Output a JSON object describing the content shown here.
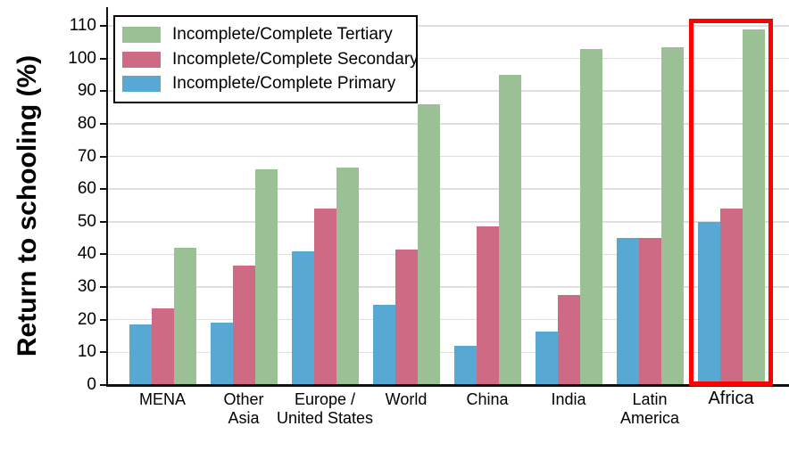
{
  "chart_data": {
    "type": "bar",
    "title": "",
    "xlabel": "",
    "ylabel": "Return to schooling (%)",
    "ylim": [
      0,
      115
    ],
    "yticks": [
      0,
      10,
      20,
      30,
      40,
      50,
      60,
      70,
      80,
      90,
      100,
      110
    ],
    "grid": true,
    "legend_position": "top-left",
    "legend_order": "reversed",
    "categories": [
      [
        "MENA"
      ],
      [
        "Other",
        "Asia"
      ],
      [
        "Europe /",
        "United States"
      ],
      [
        "World"
      ],
      [
        "China"
      ],
      [
        "India"
      ],
      [
        "Latin",
        "America"
      ],
      [
        "Africa"
      ]
    ],
    "series": [
      {
        "name": "Incomplete/Complete Primary",
        "color": "#57a9d4",
        "values": [
          18.5,
          19,
          41,
          24.5,
          12,
          16.5,
          45,
          50
        ]
      },
      {
        "name": "Incomplete/Complete Secondary",
        "color": "#cf6a84",
        "values": [
          23.5,
          36.5,
          54,
          41.5,
          48.5,
          27.5,
          45,
          54
        ]
      },
      {
        "name": "Incomplete/Complete Tertiary",
        "color": "#9cc095",
        "values": [
          42,
          66,
          66.5,
          86,
          95,
          103,
          103.5,
          109
        ]
      }
    ],
    "highlight": {
      "category": "Africa",
      "color": "#ff0000"
    },
    "colors": {
      "axis": "#111111",
      "gridline": "#dfdfdf",
      "text": "#000000",
      "background": "#ffffff"
    }
  }
}
